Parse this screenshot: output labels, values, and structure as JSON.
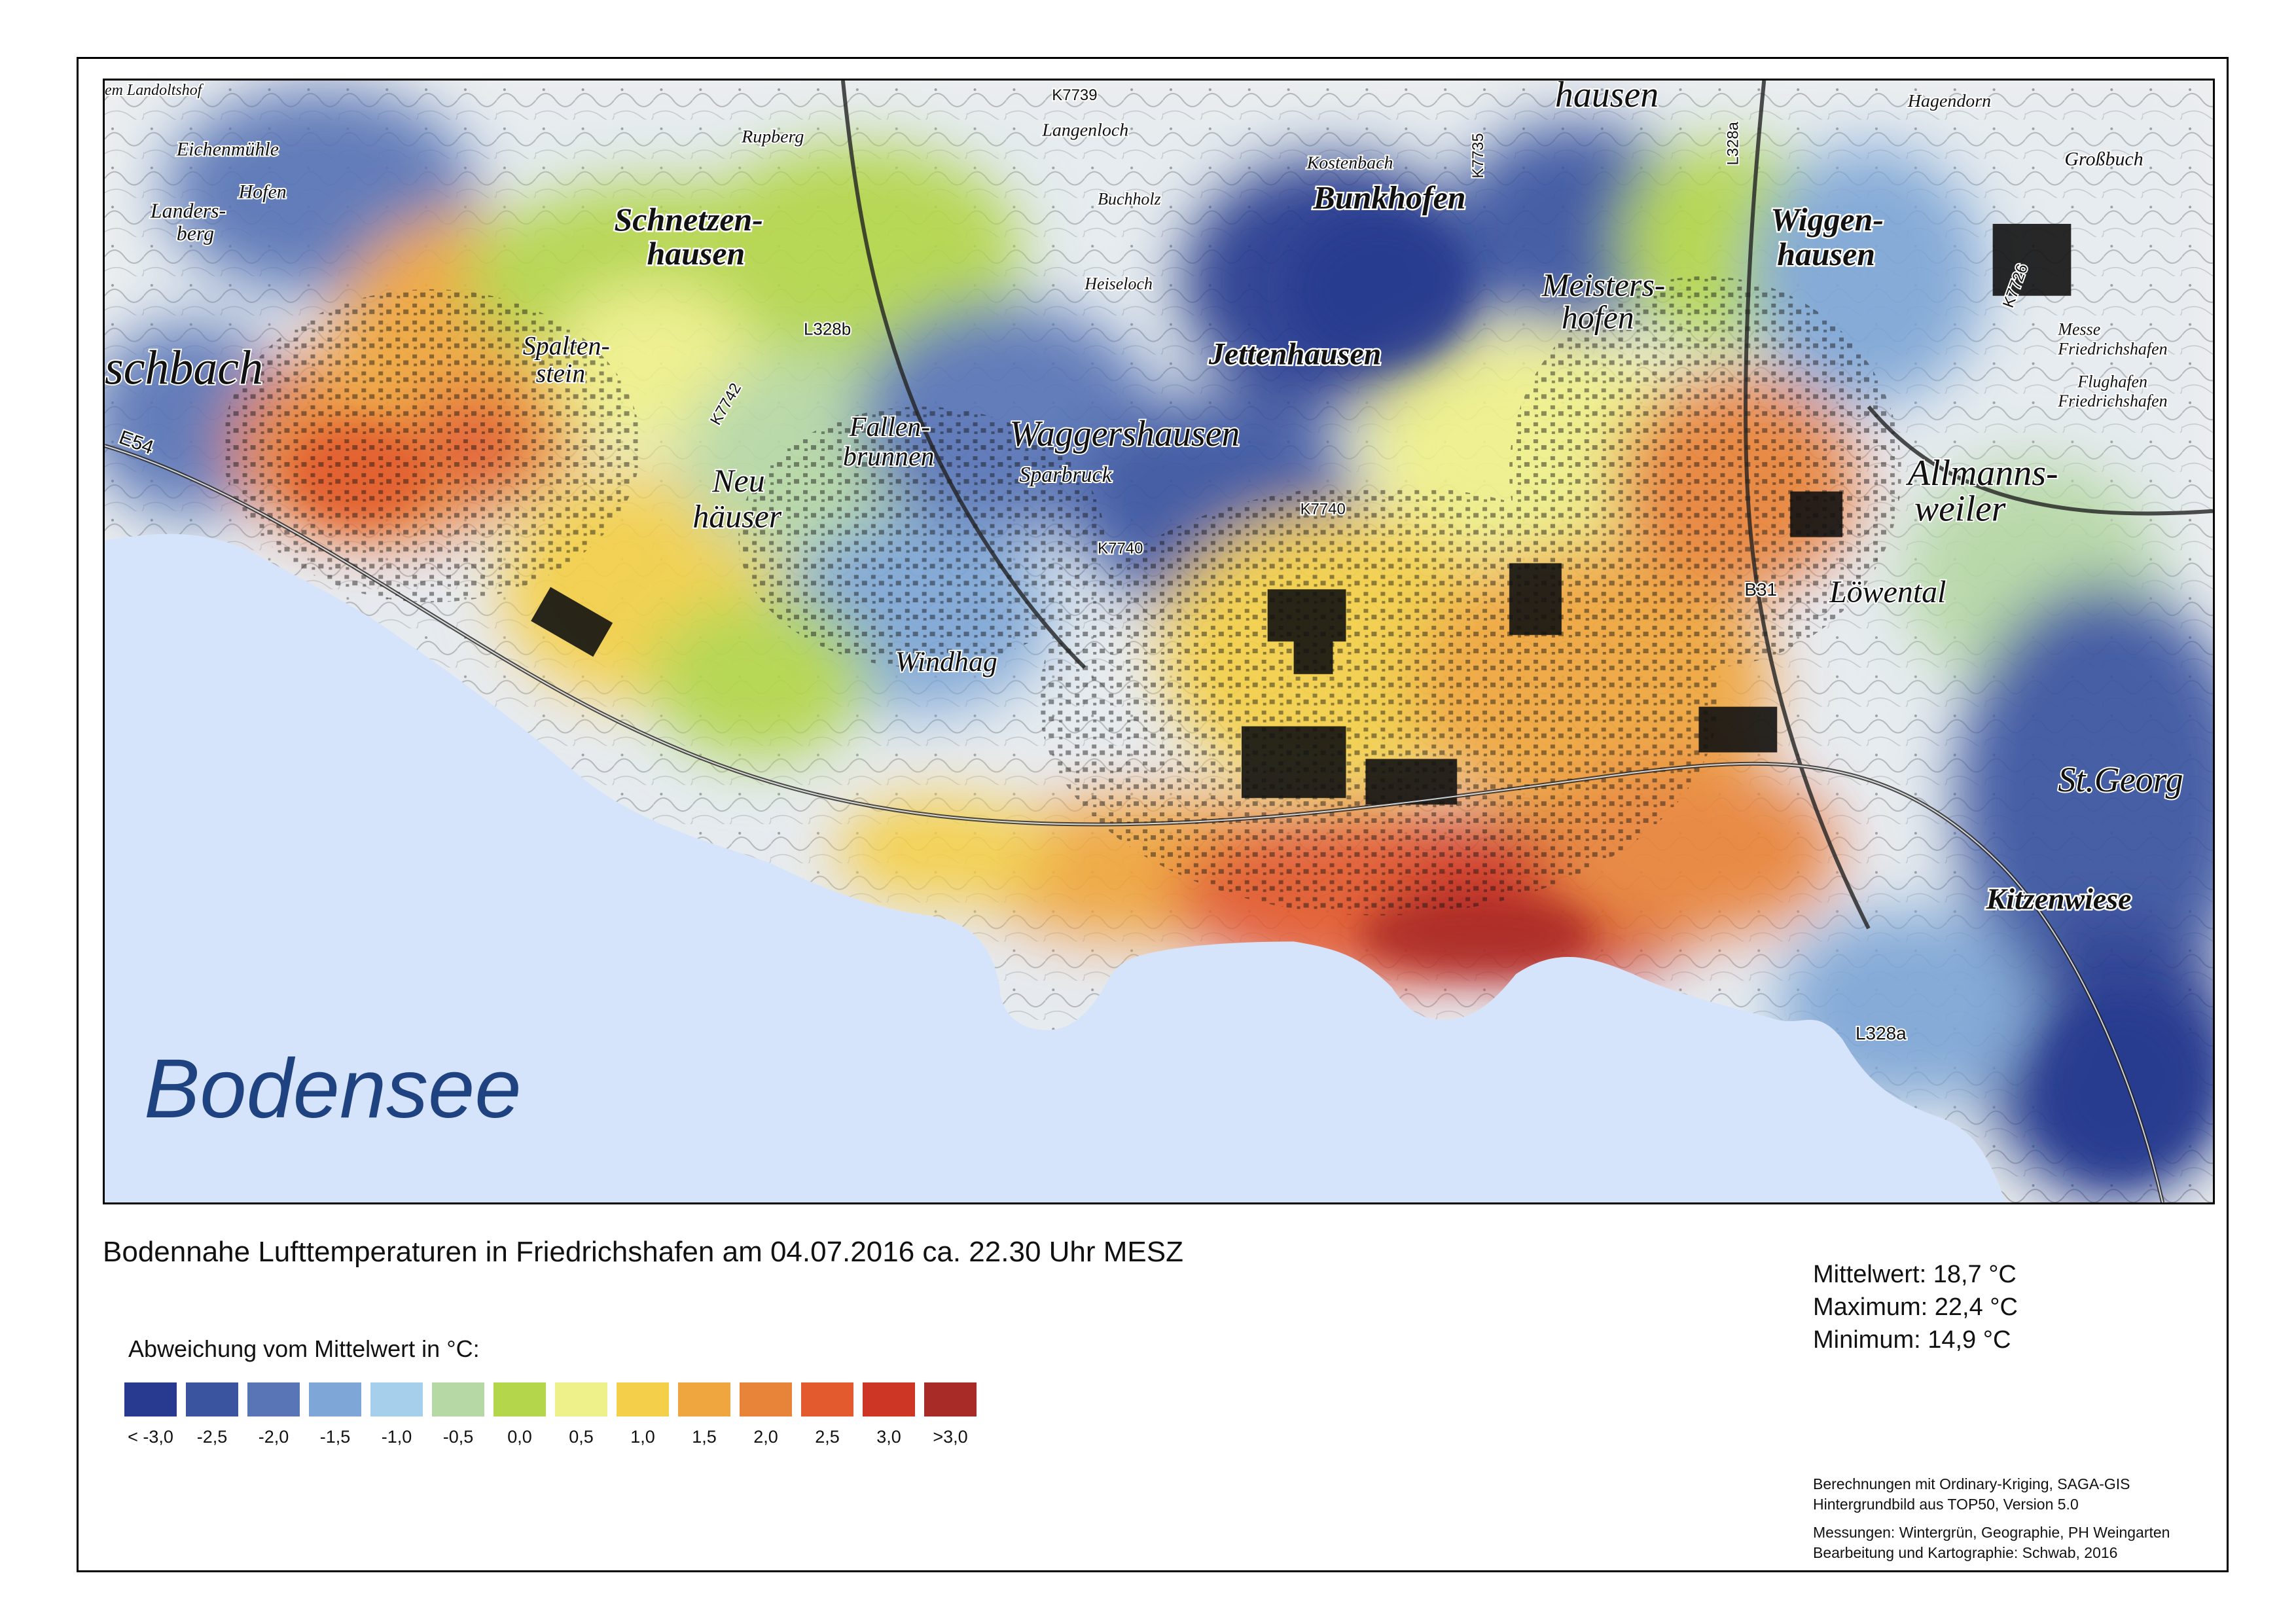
{
  "map": {
    "lake_label": "Bodensee",
    "places": [
      {
        "id": "schnetzenhausen",
        "lines": [
          "Schnetzen-",
          "hausen"
        ]
      },
      {
        "id": "spaltenstein",
        "lines": [
          "Spalten-",
          "stein"
        ]
      },
      {
        "id": "neuhaeuser",
        "lines": [
          "Neu",
          "häuser"
        ]
      },
      {
        "id": "fallenbrunnen",
        "lines": [
          "Fallen-",
          "brunnen"
        ]
      },
      {
        "id": "waggershausen",
        "lines": [
          "Waggershausen"
        ]
      },
      {
        "id": "jettenhausen",
        "lines": [
          "Jettenhausen"
        ]
      },
      {
        "id": "bunkhofen",
        "lines": [
          "Bunkhofen"
        ]
      },
      {
        "id": "meistershofen",
        "lines": [
          "Meisters-",
          "hofen"
        ]
      },
      {
        "id": "wiggenhausen",
        "lines": [
          "Wiggen-",
          "hausen"
        ]
      },
      {
        "id": "allmannsweiler",
        "lines": [
          "Allmanns-",
          "weiler"
        ]
      },
      {
        "id": "loewental",
        "lines": [
          "Löwental"
        ]
      },
      {
        "id": "windhag",
        "lines": [
          "Windhag"
        ]
      },
      {
        "id": "stgeorgen",
        "lines": [
          "St.Georg"
        ]
      },
      {
        "id": "kitzenwiese",
        "lines": [
          "Kitzenwiese"
        ]
      },
      {
        "id": "schbach",
        "lines": [
          "schbach"
        ]
      },
      {
        "id": "hausen-top",
        "lines": [
          "hausen"
        ]
      }
    ],
    "small_places": [
      {
        "id": "eichenmuehle",
        "text": "Eichenmühle"
      },
      {
        "id": "hofen",
        "text": "Hofen"
      },
      {
        "id": "landersberg",
        "text": "Landers-"
      },
      {
        "id": "landersberg2",
        "text": "berg"
      },
      {
        "id": "rupberg",
        "text": "Rupberg"
      },
      {
        "id": "langenloch",
        "text": "Langenloch"
      },
      {
        "id": "buchholz",
        "text": "Buchholz"
      },
      {
        "id": "heiseloch",
        "text": "Heiseloch"
      },
      {
        "id": "kostenbach",
        "text": "Kostenbach"
      },
      {
        "id": "hagendorn",
        "text": "Hagendorn"
      },
      {
        "id": "grossbuch",
        "text": "Großbuch"
      },
      {
        "id": "messe",
        "text": "Messe"
      },
      {
        "id": "messe2",
        "text": "Friedrichshafen"
      },
      {
        "id": "flughafen",
        "text": "Flughafen"
      },
      {
        "id": "flughafen2",
        "text": "Friedrichshafen"
      },
      {
        "id": "sparbruck",
        "text": "Sparbruck"
      },
      {
        "id": "landolts",
        "text": "em Landoltshof"
      }
    ],
    "road_labels": [
      "E54",
      "L328b",
      "K7742",
      "K7740",
      "K7740",
      "K7739",
      "K7735",
      "L328a",
      "B31",
      "K7726",
      "L328a"
    ]
  },
  "title": "Bodennahe Lufttemperaturen in Friedrichshafen am 04.07.2016 ca. 22.30 Uhr MESZ",
  "stats": {
    "mean": "Mittelwert: 18,7 °C",
    "max": "Maximum: 22,4 °C",
    "min": "Minimum: 14,9 °C"
  },
  "legend": {
    "heading": "Abweichung vom Mittelwert in °C:",
    "items": [
      {
        "label": "< -3,0",
        "color": "#283a8f"
      },
      {
        "label": "-2,5",
        "color": "#3b54a0"
      },
      {
        "label": "-2,0",
        "color": "#5975b6"
      },
      {
        "label": "-1,5",
        "color": "#7ea6d6"
      },
      {
        "label": "-1,0",
        "color": "#a6cfec"
      },
      {
        "label": "-0,5",
        "color": "#b6d8a5"
      },
      {
        "label": "0,0",
        "color": "#b3d64b"
      },
      {
        "label": "0,5",
        "color": "#eef08a"
      },
      {
        "label": "1,0",
        "color": "#f3cf4a"
      },
      {
        "label": "1,5",
        "color": "#efa63e"
      },
      {
        "label": "2,0",
        "color": "#e8843a"
      },
      {
        "label": "2,5",
        "color": "#e25a2e"
      },
      {
        "label": "3,0",
        "color": "#cd3524"
      },
      {
        "label": ">3,0",
        "color": "#a82b27"
      }
    ]
  },
  "credits": [
    "Berechnungen mit Ordinary-Kriging, SAGA-GIS",
    "Hintergrundbild aus TOP50, Version 5.0",
    "Messungen: Wintergrün, Geographie, PH Weingarten",
    "Bearbeitung und Kartographie: Schwab, 2016"
  ],
  "colors": {
    "lake": "#d6e4fb",
    "frame": "#000000",
    "lake_label": "#1f4380"
  }
}
